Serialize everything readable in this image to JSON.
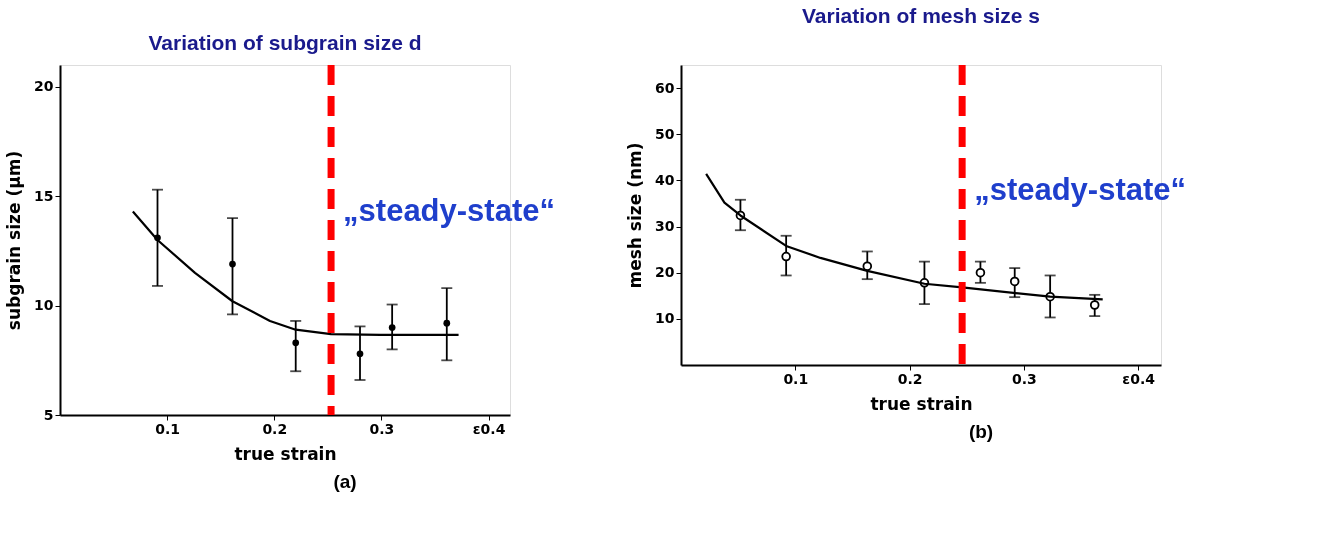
{
  "chart_data": [
    {
      "type": "scatter",
      "title": "Variation of subgrain size d",
      "xlabel": "true strain",
      "ylabel": "subgrain size (µm)",
      "xlim": [
        0,
        0.42
      ],
      "ylim": [
        5,
        21
      ],
      "xticks": [
        0.1,
        0.2,
        0.3,
        {
          "value": 0.4,
          "label": "ε0.4"
        }
      ],
      "yticks": [
        5,
        10,
        15,
        20
      ],
      "grid": false,
      "series": [
        {
          "marker": "circle",
          "color": "#000000",
          "x": [
            0.091,
            0.161,
            0.22,
            0.28,
            0.31,
            0.361
          ],
          "values": [
            13.1,
            11.9,
            8.3,
            7.8,
            9.0,
            9.2
          ],
          "errors": [
            [
              10.9,
              15.3
            ],
            [
              9.6,
              14.0
            ],
            [
              7.0,
              9.3
            ],
            [
              6.6,
              9.05
            ],
            [
              8.0,
              10.05
            ],
            [
              7.5,
              10.8
            ]
          ]
        },
        {
          "type": "line",
          "marker": "none",
          "color": "#000000",
          "line_style": "solid",
          "x": [
            0.068,
            0.091,
            0.126,
            0.161,
            0.196,
            0.22,
            0.253,
            0.299,
            0.372
          ],
          "values": [
            14.3,
            13.0,
            11.5,
            10.2,
            9.3,
            8.9,
            8.7,
            8.66,
            8.66
          ]
        }
      ],
      "ref_lines": [
        {
          "axis": "x",
          "value": 0.253,
          "label": "„steady-state“",
          "color": "#ff0000",
          "line_style": "dashed"
        }
      ],
      "annotations": [
        "(a)"
      ]
    },
    {
      "type": "scatter",
      "title": "Variation of mesh size s",
      "xlabel": "true strain",
      "ylabel": "mesh size (nm)",
      "xlim": [
        0,
        0.42
      ],
      "ylim": [
        0,
        65
      ],
      "xticks": [
        0.1,
        0.2,
        0.3,
        {
          "value": 0.4,
          "label": "ε0.4"
        }
      ],
      "yticks": [
        10,
        20,
        30,
        40,
        50,
        60
      ],
      "grid": false,
      "series": [
        {
          "marker": "circle",
          "color": "#000000",
          "x": [
            0.052,
            0.092,
            0.163,
            0.213,
            0.262,
            0.292,
            0.323,
            0.362
          ],
          "values": [
            32.4,
            23.5,
            21.4,
            17.8,
            20.0,
            18.1,
            14.8,
            13.0
          ],
          "errors": [
            [
              29.2,
              35.8
            ],
            [
              19.4,
              28
            ],
            [
              18.6,
              24.6
            ],
            [
              13.2,
              22.4
            ],
            [
              17.8,
              22.4
            ],
            [
              14.7,
              21
            ],
            [
              10.3,
              19.4
            ],
            [
              10.6,
              15.2
            ]
          ]
        },
        {
          "type": "line",
          "marker": "none",
          "color": "#000000",
          "line_style": "solid",
          "x": [
            0.022,
            0.038,
            0.052,
            0.092,
            0.122,
            0.163,
            0.213,
            0.246,
            0.323,
            0.369
          ],
          "values": [
            41.4,
            35.2,
            32.4,
            25.8,
            23.2,
            20.4,
            17.6,
            16.8,
            14.8,
            14.2
          ]
        }
      ],
      "ref_lines": [
        {
          "axis": "x",
          "value": 0.246,
          "label": "„steady-state“",
          "color": "#ff0000",
          "line_style": "dashed"
        }
      ],
      "annotations": [
        "(b)"
      ]
    }
  ]
}
